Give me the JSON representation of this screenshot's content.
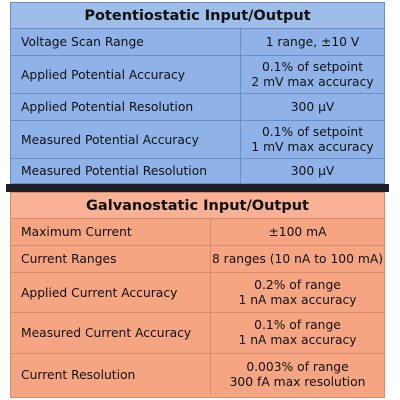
{
  "potentiostatic": {
    "title": "Potentiostatic Input/Output",
    "rows": [
      {
        "label": "Voltage Scan Range",
        "value_line1": "1 range, ±10 V",
        "value_line2": ""
      },
      {
        "label": "Applied Potential Accuracy",
        "value_line1": "0.1% of setpoint",
        "value_line2": "2 mV max accuracy"
      },
      {
        "label": "Applied Potential Resolution",
        "value_line1": "300 µV",
        "value_line2": ""
      },
      {
        "label": "Measured Potential Accuracy",
        "value_line1": "0.1% of setpoint",
        "value_line2": "1 mV max accuracy"
      },
      {
        "label": "Measured Potential Resolution",
        "value_line1": "300 µV",
        "value_line2": ""
      }
    ]
  },
  "galvanostatic": {
    "title": "Galvanostatic Input/Output",
    "rows": [
      {
        "label": "Maximum Current",
        "value_line1": "±100 mA",
        "value_line2": ""
      },
      {
        "label": "Current Ranges",
        "value_line1": "8 ranges (10 nA to 100 mA)",
        "value_line2": ""
      },
      {
        "label": "Applied Current Accuracy",
        "value_line1": "0.2% of range",
        "value_line2": "1 nA max accuracy"
      },
      {
        "label": "Measured Current Accuracy",
        "value_line1": "0.1% of range",
        "value_line2": "1 nA max accuracy"
      },
      {
        "label": "Current Resolution",
        "value_line1": "0.003% of range",
        "value_line2": "300 fA  max resolution"
      }
    ]
  },
  "colors": {
    "potentiostatic_bg": "#8fb3e8",
    "galvanostatic_bg": "#f6a583",
    "divider": "#1e1f29"
  }
}
